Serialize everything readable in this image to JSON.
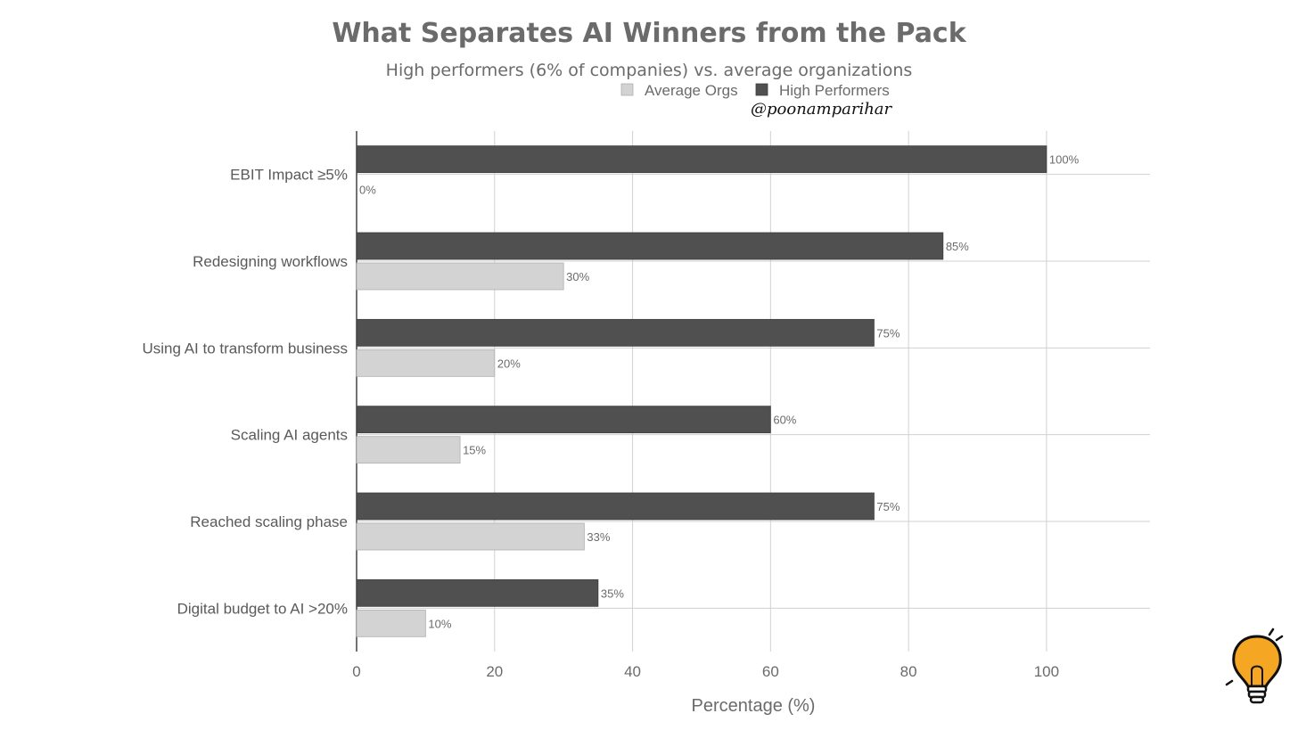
{
  "chart_data": {
    "type": "bar",
    "orientation": "horizontal",
    "title": "What Separates AI Winners from the Pack",
    "subtitle": "High performers (6% of companies) vs. average organizations",
    "xlabel": "Percentage (%)",
    "ylabel": "",
    "xlim": [
      0,
      115
    ],
    "xticks": [
      0,
      20,
      40,
      60,
      80,
      100
    ],
    "grid": true,
    "legend_position": "top-right",
    "categories": [
      "EBIT Impact ≥5%",
      "Redesigning workflows",
      "Using AI to transform business",
      "Scaling AI agents",
      "Reached scaling phase",
      "Digital budget to AI >20%"
    ],
    "series": [
      {
        "name": "High Performers",
        "color": "#505050",
        "values": [
          100,
          85,
          75,
          60,
          75,
          35
        ],
        "labels": [
          "100%",
          "85%",
          "75%",
          "60%",
          "75%",
          "35%"
        ]
      },
      {
        "name": "Average Orgs",
        "color": "#d3d3d3",
        "values": [
          0,
          30,
          20,
          15,
          33,
          10
        ],
        "labels": [
          "0%",
          "30%",
          "20%",
          "15%",
          "33%",
          "10%"
        ]
      }
    ],
    "legend_order": [
      "Average Orgs",
      "High Performers"
    ]
  },
  "watermark": {
    "handle": "@poonamparihar",
    "logo_icon": "lightbulb-icon",
    "logo_color": "#f5a623"
  }
}
